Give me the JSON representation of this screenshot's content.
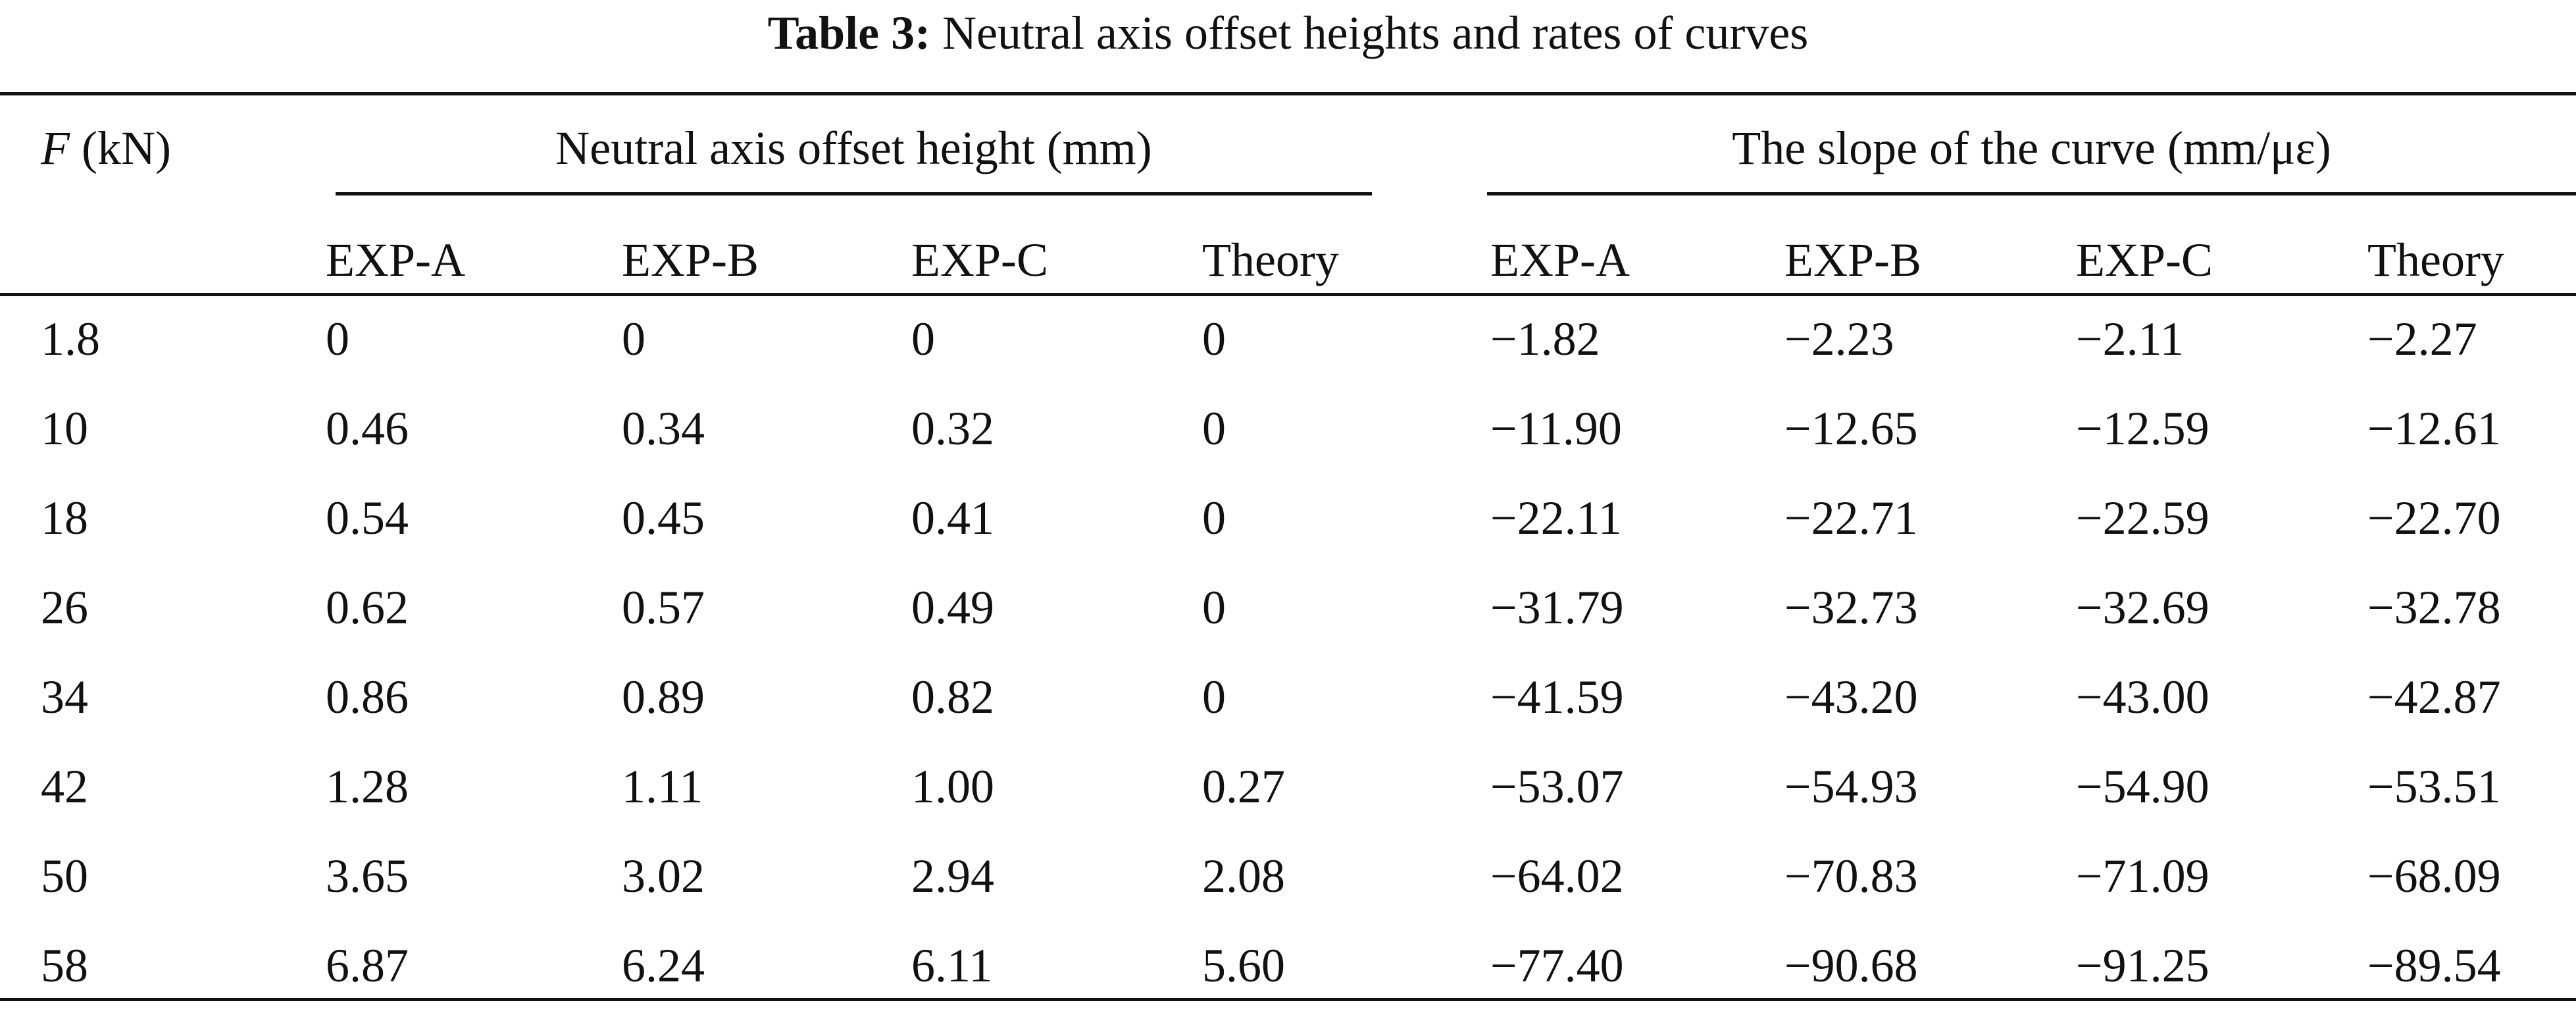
{
  "caption": {
    "label": "Table 3:",
    "text": "Neutral axis offset heights and rates of curves"
  },
  "table": {
    "row_header": {
      "symbol": "F",
      "unit": "(kN)"
    },
    "groups": [
      {
        "title": "Neutral axis offset height (mm)",
        "columns": [
          "EXP-A",
          "EXP-B",
          "EXP-C",
          "Theory"
        ]
      },
      {
        "title": "The slope of the curve (mm/με)",
        "columns": [
          "EXP-A",
          "EXP-B",
          "EXP-C",
          "Theory"
        ]
      }
    ],
    "rows": [
      [
        "1.8",
        "0",
        "0",
        "0",
        "0",
        "−1.82",
        "−2.23",
        "−2.11",
        "−2.27"
      ],
      [
        "10",
        "0.46",
        "0.34",
        "0.32",
        "0",
        "−11.90",
        "−12.65",
        "−12.59",
        "−12.61"
      ],
      [
        "18",
        "0.54",
        "0.45",
        "0.41",
        "0",
        "−22.11",
        "−22.71",
        "−22.59",
        "−22.70"
      ],
      [
        "26",
        "0.62",
        "0.57",
        "0.49",
        "0",
        "−31.79",
        "−32.73",
        "−32.69",
        "−32.78"
      ],
      [
        "34",
        "0.86",
        "0.89",
        "0.82",
        "0",
        "−41.59",
        "−43.20",
        "−43.00",
        "−42.87"
      ],
      [
        "42",
        "1.28",
        "1.11",
        "1.00",
        "0.27",
        "−53.07",
        "−54.93",
        "−54.90",
        "−53.51"
      ],
      [
        "50",
        "3.65",
        "3.02",
        "2.94",
        "2.08",
        "−64.02",
        "−70.83",
        "−71.09",
        "−68.09"
      ],
      [
        "58",
        "6.87",
        "6.24",
        "6.11",
        "5.60",
        "−77.40",
        "−90.68",
        "−91.25",
        "−89.54"
      ]
    ]
  }
}
